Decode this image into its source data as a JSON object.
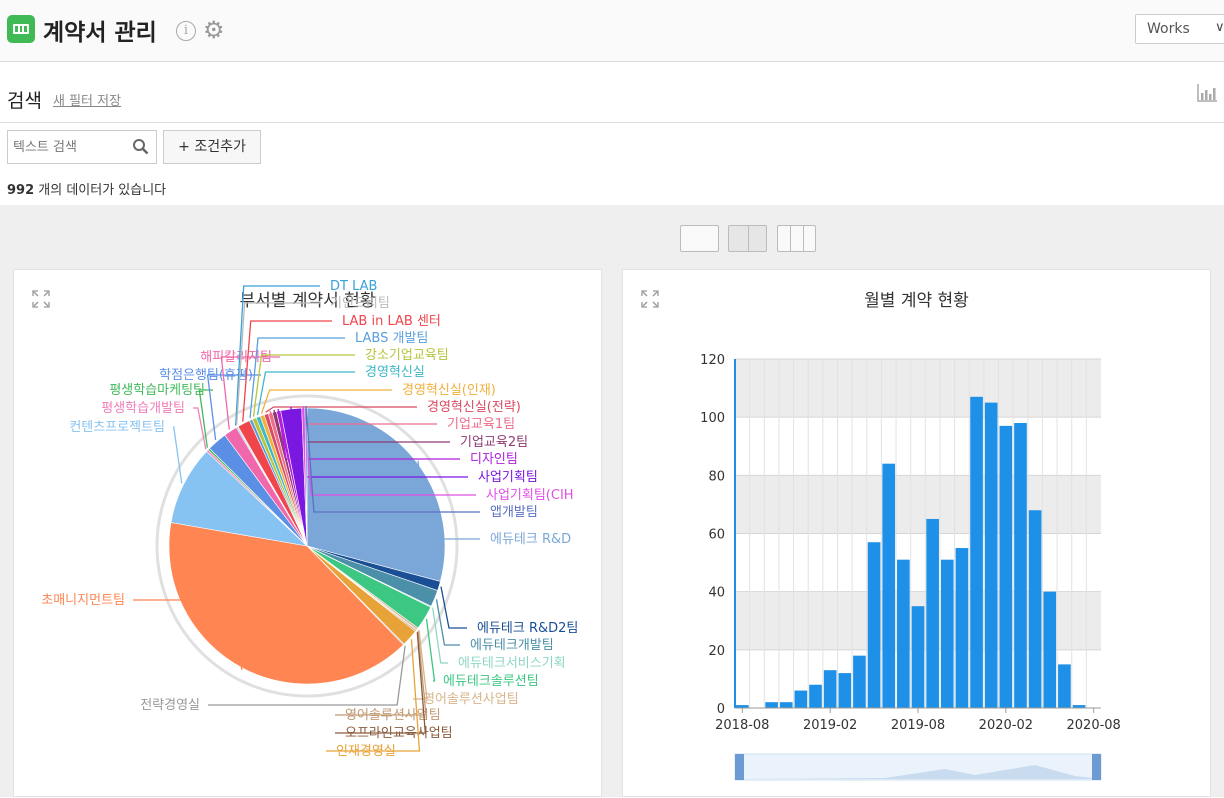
{
  "header": {
    "title": "계약서 관리",
    "info_glyph": "i",
    "gear_glyph": "⚙",
    "works_label": "Works",
    "works_chevron": "∨"
  },
  "search": {
    "title": "검색",
    "save_filter": "새 필터 저장",
    "placeholder": "텍스트 검색",
    "add_condition": "+ 조건추가",
    "count": "992",
    "count_suffix": " 개의 데이터가 있습니다"
  },
  "layout_options": [
    "single-column",
    "two-column",
    "three-column"
  ],
  "colors": {
    "app_green": "#3fba55",
    "bar_blue": "#1e90e8"
  },
  "chart_data": [
    {
      "type": "pie",
      "title": "부서별 계약서 현황",
      "slices": [
        {
          "label": "에듀테크 R&D",
          "value": 238,
          "color": "#7ba7d8"
        },
        {
          "label": "에듀테크 R&D2팀",
          "value": 9,
          "color": "#1a4f96"
        },
        {
          "label": "에듀테크개발팀",
          "value": 16,
          "color": "#4c8fa8"
        },
        {
          "label": "에듀테크서비스기획",
          "value": 1,
          "color": "#8fd7c5"
        },
        {
          "label": "에듀테크솔루션팀",
          "value": 23,
          "color": "#3cc782"
        },
        {
          "label": "영어솔루션사업팀",
          "value": 2,
          "color": "#d9b48a"
        },
        {
          "label": "영어솔루션사업팀",
          "value": 1,
          "color": "#c19a73"
        },
        {
          "label": "오프라인교육사업팀",
          "value": 1,
          "color": "#8a5a3a"
        },
        {
          "label": "인재경영실",
          "value": 16,
          "color": "#e8a338"
        },
        {
          "label": "전략경영실",
          "value": 1,
          "color": "#999999"
        },
        {
          "label": "초매니지먼트팀",
          "value": 327,
          "color": "#ff8552"
        },
        {
          "label": "컨텐츠프로젝트팀",
          "value": 76,
          "color": "#86c3f3"
        },
        {
          "label": "평생학습개발팀",
          "value": 2,
          "color": "#f07eb8"
        },
        {
          "label": "평생학습마케팅팀",
          "value": 2,
          "color": "#42b95c"
        },
        {
          "label": "학점은행팀(휴평)",
          "value": 19,
          "color": "#5b8fe6"
        },
        {
          "label": "해피칼리지팀",
          "value": 13,
          "color": "#f067ab"
        },
        {
          "label": "DT LAB",
          "value": 1,
          "color": "#3aa0dc"
        },
        {
          "label": "기인드리팀",
          "value": 1,
          "color": "#bbbbbb"
        },
        {
          "label": "LAB in LAB 센터",
          "value": 12,
          "color": "#f0454b"
        },
        {
          "label": "LABS 개발팀",
          "value": 3,
          "color": "#5a9fdc"
        },
        {
          "label": "강소기업교육팀",
          "value": 4,
          "color": "#b7c43c"
        },
        {
          "label": "경영혁신실",
          "value": 4,
          "color": "#3fb8c9"
        },
        {
          "label": "경영혁신실(인재)",
          "value": 4,
          "color": "#f2b03c"
        },
        {
          "label": "경영혁신실(전략)",
          "value": 4,
          "color": "#d84b62"
        },
        {
          "label": "기업교육1팀",
          "value": 4,
          "color": "#ef6c8a"
        },
        {
          "label": "기업교육2팀",
          "value": 4,
          "color": "#8e3a73"
        },
        {
          "label": "디자인팀",
          "value": 4,
          "color": "#b01edc"
        },
        {
          "label": "사업기획팀",
          "value": 20,
          "color": "#7a17e0"
        },
        {
          "label": "사업기획팀(CIH",
          "value": 3,
          "color": "#e14fe6"
        },
        {
          "label": "앱개발팀",
          "value": 2,
          "color": "#5b6fc4"
        }
      ]
    },
    {
      "type": "bar",
      "title": "월별 계약 현황",
      "xlabel": "",
      "ylabel": "",
      "ylim": [
        0,
        120
      ],
      "yticks": [
        0,
        20,
        40,
        60,
        80,
        100,
        120
      ],
      "xticks": [
        "2018-08",
        "2019-02",
        "2019-08",
        "2020-02",
        "2020-08"
      ],
      "categories": [
        "2018-08",
        "2018-09",
        "2018-10",
        "2018-11",
        "2018-12",
        "2019-01",
        "2019-02",
        "2019-03",
        "2019-04",
        "2019-05",
        "2019-06",
        "2019-07",
        "2019-08",
        "2019-09",
        "2019-10",
        "2019-11",
        "2019-12",
        "2020-01",
        "2020-02",
        "2020-03",
        "2020-04",
        "2020-05",
        "2020-06",
        "2020-07",
        "2020-08"
      ],
      "values": [
        1,
        0,
        2,
        2,
        6,
        8,
        13,
        12,
        18,
        57,
        84,
        51,
        35,
        65,
        51,
        55,
        107,
        105,
        97,
        98,
        68,
        40,
        15,
        1,
        0
      ],
      "grid": true
    }
  ]
}
